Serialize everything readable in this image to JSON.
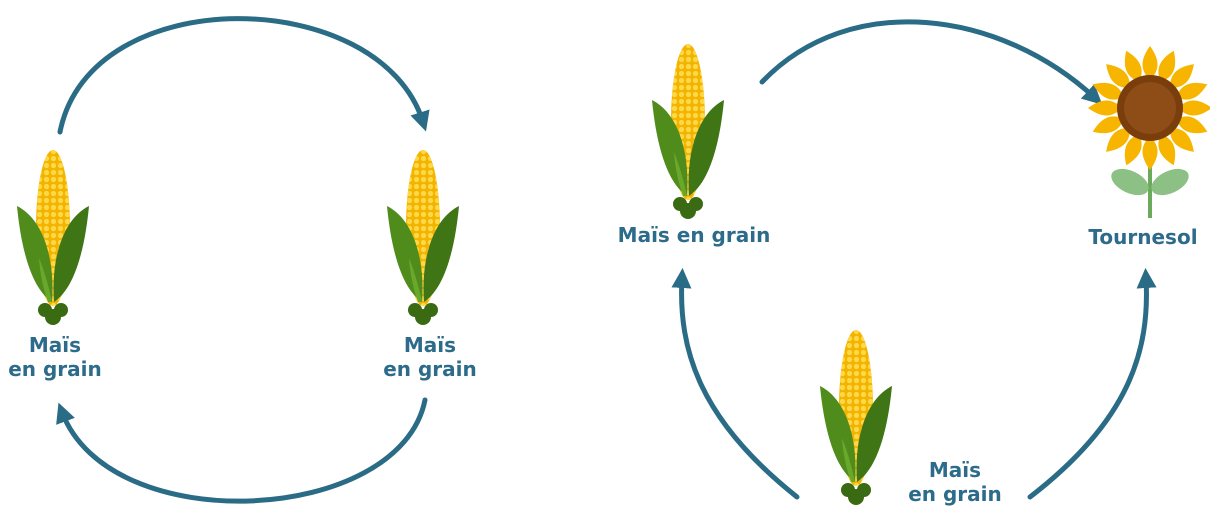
{
  "diagrams": [
    {
      "nodes": [
        {
          "lines": [
            "Maïs",
            "en grain"
          ]
        },
        {
          "lines": [
            "Maïs",
            "en grain"
          ]
        }
      ]
    },
    {
      "nodes": [
        {
          "lines": [
            "Maïs en grain"
          ]
        },
        {
          "lines": [
            "Tournesol"
          ]
        },
        {
          "lines": [
            "Maïs",
            "en grain"
          ]
        }
      ]
    }
  ]
}
